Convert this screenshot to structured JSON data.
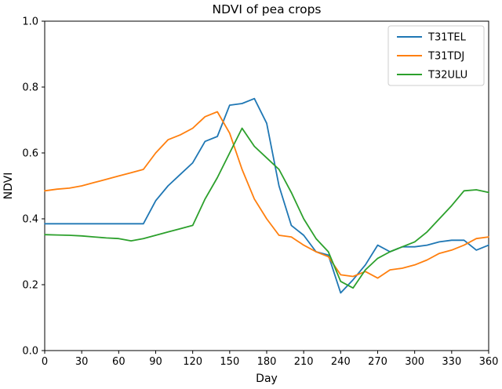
{
  "chart_data": {
    "type": "line",
    "title": "NDVI of pea crops",
    "xlabel": "Day",
    "ylabel": "NDVI",
    "xlim": [
      0,
      360
    ],
    "ylim": [
      0.0,
      1.0
    ],
    "xticks": [
      0,
      30,
      60,
      90,
      120,
      150,
      180,
      210,
      240,
      270,
      300,
      330,
      360
    ],
    "yticks": [
      0.0,
      0.2,
      0.4,
      0.6,
      0.8,
      1.0
    ],
    "grid": false,
    "legend_position": "upper right",
    "x": [
      0,
      10,
      20,
      30,
      40,
      50,
      60,
      70,
      80,
      90,
      100,
      110,
      120,
      130,
      140,
      150,
      160,
      170,
      180,
      190,
      200,
      210,
      220,
      230,
      240,
      250,
      260,
      270,
      280,
      290,
      300,
      310,
      320,
      330,
      340,
      350,
      360
    ],
    "series": [
      {
        "name": "T31TEL",
        "color": "#1f77b4",
        "values": [
          0.385,
          0.385,
          0.385,
          0.385,
          0.385,
          0.385,
          0.385,
          0.385,
          0.385,
          0.455,
          0.5,
          0.535,
          0.57,
          0.635,
          0.65,
          0.745,
          0.75,
          0.765,
          0.69,
          0.5,
          0.38,
          0.35,
          0.3,
          0.29,
          0.175,
          0.215,
          0.26,
          0.32,
          0.3,
          0.315,
          0.315,
          0.32,
          0.33,
          0.335,
          0.335,
          0.305,
          0.32
        ]
      },
      {
        "name": "T31TDJ",
        "color": "#ff7f0e",
        "values": [
          0.485,
          0.49,
          0.493,
          0.5,
          0.51,
          0.52,
          0.53,
          0.54,
          0.55,
          0.6,
          0.64,
          0.655,
          0.675,
          0.71,
          0.725,
          0.66,
          0.55,
          0.46,
          0.4,
          0.35,
          0.345,
          0.32,
          0.3,
          0.285,
          0.23,
          0.225,
          0.24,
          0.22,
          0.245,
          0.25,
          0.26,
          0.275,
          0.295,
          0.305,
          0.32,
          0.34,
          0.345
        ]
      },
      {
        "name": "T32ULU",
        "color": "#2ca02c",
        "values": [
          0.352,
          0.351,
          0.35,
          0.348,
          0.345,
          0.342,
          0.34,
          0.333,
          0.34,
          0.35,
          0.36,
          0.37,
          0.38,
          0.46,
          0.525,
          0.6,
          0.675,
          0.62,
          0.585,
          0.55,
          0.48,
          0.4,
          0.34,
          0.3,
          0.21,
          0.19,
          0.245,
          0.28,
          0.3,
          0.315,
          0.33,
          0.36,
          0.4,
          0.44,
          0.485,
          0.488,
          0.48
        ]
      }
    ]
  }
}
